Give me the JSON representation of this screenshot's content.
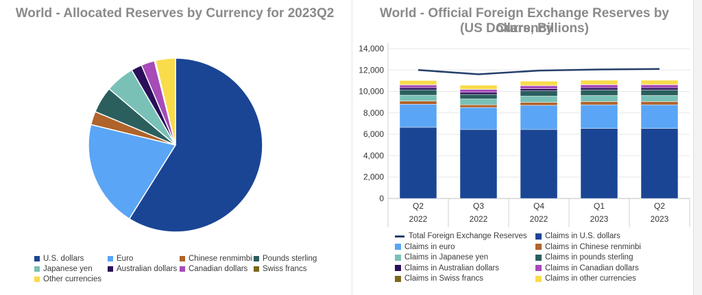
{
  "chart_data": [
    {
      "type": "pie",
      "title": "World - Allocated Reserves by Currency for 2023Q2",
      "slices": [
        {
          "label": "U.S. dollars",
          "value": 58.9,
          "color": "#1a4594"
        },
        {
          "label": "Euro",
          "value": 19.9,
          "color": "#5aa5f5"
        },
        {
          "label": "Chinese renmimbi",
          "value": 2.5,
          "color": "#b0632b"
        },
        {
          "label": "Pounds sterling",
          "value": 4.9,
          "color": "#2a5f5e"
        },
        {
          "label": "Japanese yen",
          "value": 5.4,
          "color": "#79c1b6"
        },
        {
          "label": "Australian dollars",
          "value": 2.0,
          "color": "#2b0f5a"
        },
        {
          "label": "Canadian dollars",
          "value": 2.5,
          "color": "#a64bb8"
        },
        {
          "label": "Swiss francs",
          "value": 0.2,
          "color": "#7a6a1c"
        },
        {
          "label": "Other currencies",
          "value": 3.7,
          "color": "#f8dc4a"
        }
      ],
      "legend_position": "bottom"
    },
    {
      "type": "bar",
      "stacked": true,
      "title": "World - Official Foreign Exchange Reserves by Currency",
      "subtitle": "(US Dollars, Billions)",
      "categories": [
        {
          "q": "Q2",
          "y": "2022"
        },
        {
          "q": "Q3",
          "y": "2022"
        },
        {
          "q": "Q4",
          "y": "2022"
        },
        {
          "q": "Q1",
          "y": "2023"
        },
        {
          "q": "Q2",
          "y": "2023"
        }
      ],
      "ylim": [
        0,
        14000
      ],
      "yticks": [
        "0",
        "2,000",
        "4,000",
        "6,000",
        "8,000",
        "10,000",
        "12,000",
        "14,000"
      ],
      "ytick_values": [
        0,
        2000,
        4000,
        6000,
        8000,
        10000,
        12000,
        14000
      ],
      "line_series": {
        "name": "Total Foreign Exchange Reserves",
        "color": "#243f6b",
        "values": [
          12000,
          11600,
          11950,
          12050,
          12100
        ]
      },
      "series": [
        {
          "name": "Claims in U.S. dollars",
          "color": "#1a4594",
          "values": [
            6650,
            6450,
            6450,
            6550,
            6550
          ]
        },
        {
          "name": "Claims in euro",
          "color": "#5aa5f5",
          "values": [
            2150,
            2050,
            2250,
            2200,
            2200
          ]
        },
        {
          "name": "Claims in Chinese renminbi",
          "color": "#b0632b",
          "values": [
            300,
            250,
            280,
            300,
            300
          ]
        },
        {
          "name": "Claims in Japanese yen",
          "color": "#79c1b6",
          "values": [
            550,
            550,
            580,
            570,
            570
          ]
        },
        {
          "name": "Claims in pounds sterling",
          "color": "#2a5f5e",
          "values": [
            500,
            420,
            500,
            520,
            520
          ]
        },
        {
          "name": "Claims in Australian dollars",
          "color": "#2b0f5a",
          "values": [
            200,
            200,
            200,
            200,
            200
          ]
        },
        {
          "name": "Claims in Canadian dollars",
          "color": "#a64bb8",
          "values": [
            250,
            260,
            270,
            280,
            280
          ]
        },
        {
          "name": "Claims in Swiss francs",
          "color": "#7a6a1c",
          "values": [
            20,
            20,
            20,
            20,
            20
          ]
        },
        {
          "name": "Claims in other currencies",
          "color": "#f8dc4a",
          "values": [
            400,
            380,
            400,
            410,
            410
          ]
        }
      ],
      "legend_position": "bottom"
    }
  ]
}
